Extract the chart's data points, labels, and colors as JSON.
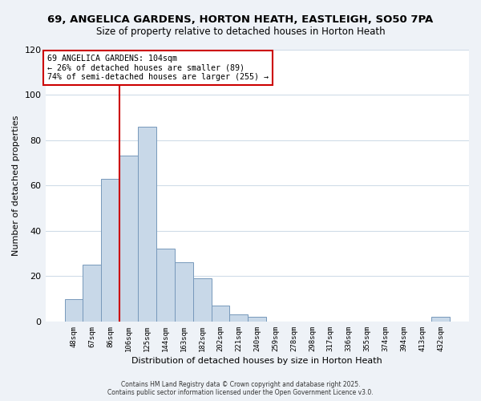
{
  "title": "69, ANGELICA GARDENS, HORTON HEATH, EASTLEIGH, SO50 7PA",
  "subtitle": "Size of property relative to detached houses in Horton Heath",
  "xlabel": "Distribution of detached houses by size in Horton Heath",
  "ylabel": "Number of detached properties",
  "bar_color": "#c8d8e8",
  "bar_edge_color": "#7799bb",
  "bin_labels": [
    "48sqm",
    "67sqm",
    "86sqm",
    "106sqm",
    "125sqm",
    "144sqm",
    "163sqm",
    "182sqm",
    "202sqm",
    "221sqm",
    "240sqm",
    "259sqm",
    "278sqm",
    "298sqm",
    "317sqm",
    "336sqm",
    "355sqm",
    "374sqm",
    "394sqm",
    "413sqm",
    "432sqm"
  ],
  "bar_heights": [
    10,
    25,
    63,
    73,
    86,
    32,
    26,
    19,
    7,
    3,
    2,
    0,
    0,
    0,
    0,
    0,
    0,
    0,
    0,
    0,
    2
  ],
  "ylim": [
    0,
    120
  ],
  "yticks": [
    0,
    20,
    40,
    60,
    80,
    100,
    120
  ],
  "vline_color": "#cc0000",
  "annotation_title": "69 ANGELICA GARDENS: 104sqm",
  "annotation_line1": "← 26% of detached houses are smaller (89)",
  "annotation_line2": "74% of semi-detached houses are larger (255) →",
  "annotation_box_color": "#ffffff",
  "annotation_box_edge": "#cc0000",
  "footer1": "Contains HM Land Registry data © Crown copyright and database right 2025.",
  "footer2": "Contains public sector information licensed under the Open Government Licence v3.0.",
  "background_color": "#eef2f7",
  "plot_background": "#ffffff",
  "grid_color": "#d0dce8"
}
